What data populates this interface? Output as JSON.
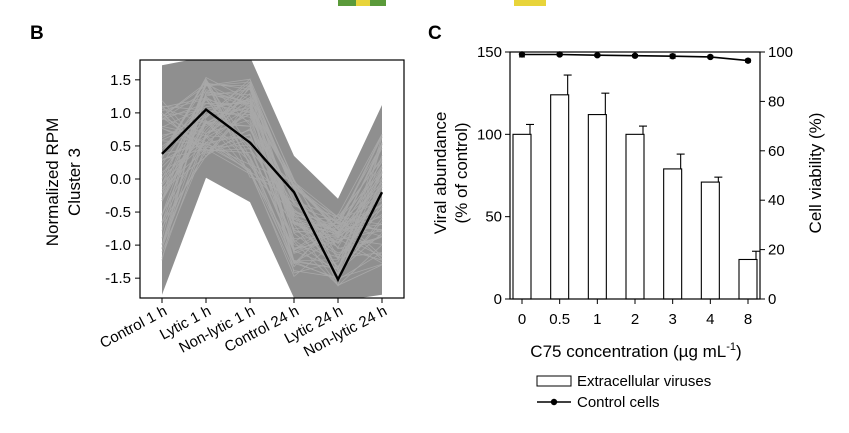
{
  "top_strip": {
    "colors": [
      "#5a9a3a",
      "#e8d43a",
      "#5a9a3a",
      "#e8d43a"
    ]
  },
  "panel_b": {
    "letter": "B",
    "ylabel_line1": "Normalized RPM",
    "ylabel_line2": "Cluster 3"
  },
  "panel_c": {
    "letter": "C",
    "ylabel_left_line1": "Viral abundance",
    "ylabel_left_line2": "(% of control)",
    "ylabel_right": "Cell viability (%)",
    "xlabel_main": "C75 concentration (µg mL",
    "xlabel_sup": "-1",
    "xlabel_close": ")",
    "legend": [
      {
        "label": "Extracellular viruses",
        "style": "open-bar"
      },
      {
        "label": "Control cells",
        "style": "line-dot"
      }
    ]
  },
  "chart_data": [
    {
      "type": "line",
      "panel": "B",
      "categories": [
        "Control 1 h",
        "Lytic 1 h",
        "Non-lytic 1 h",
        "Control 24 h",
        "Lytic 24 h",
        "Non-lytic 24 h"
      ],
      "ylabel": "Normalized RPM Cluster 3",
      "ylim": [
        -1.8,
        1.8
      ],
      "yticks": [
        -1.5,
        -1.0,
        -0.5,
        0.0,
        0.5,
        1.0,
        1.5
      ],
      "ytick_labels": [
        "-1.5",
        "-1.0",
        "-0.5",
        "0.0",
        "0.5",
        "1.0",
        "1.5"
      ],
      "background_profiles_color": "#8f8f8f",
      "background_envelope": {
        "upper": [
          1.72,
          1.85,
          1.85,
          0.35,
          -0.3,
          1.12
        ],
        "lower": [
          -1.75,
          0.02,
          -0.35,
          -1.8,
          -1.85,
          -1.75
        ]
      },
      "mean_series": {
        "color": "#000000",
        "values": [
          0.38,
          1.05,
          0.55,
          -0.2,
          -1.52,
          -0.2
        ]
      }
    },
    {
      "type": "bar",
      "panel": "C",
      "categories": [
        "0",
        "0.5",
        "1",
        "2",
        "3",
        "4",
        "8"
      ],
      "xlabel": "C75 concentration (µg mL-1)",
      "ylabel": "Viral abundance (% of control)",
      "ylim": [
        0,
        150
      ],
      "yticks": [
        0,
        50,
        100,
        150
      ],
      "series": [
        {
          "name": "Extracellular viruses",
          "values": [
            100,
            124,
            112,
            100,
            79,
            71,
            24
          ],
          "error": [
            6,
            12,
            13,
            5,
            9,
            3,
            5
          ]
        }
      ],
      "secondary_axis": {
        "type": "line",
        "ylabel": "Cell viability (%)",
        "ylim": [
          0,
          100
        ],
        "yticks": [
          0,
          20,
          40,
          60,
          80,
          100
        ],
        "series": [
          {
            "name": "Control cells",
            "values": [
              99,
              99,
              98.7,
              98.5,
              98.3,
              98,
              96.5
            ],
            "error": [
              1,
              0.5,
              0.5,
              0.5,
              0.8,
              0.5,
              0.6
            ]
          }
        ]
      },
      "legend_position": "bottom"
    }
  ]
}
